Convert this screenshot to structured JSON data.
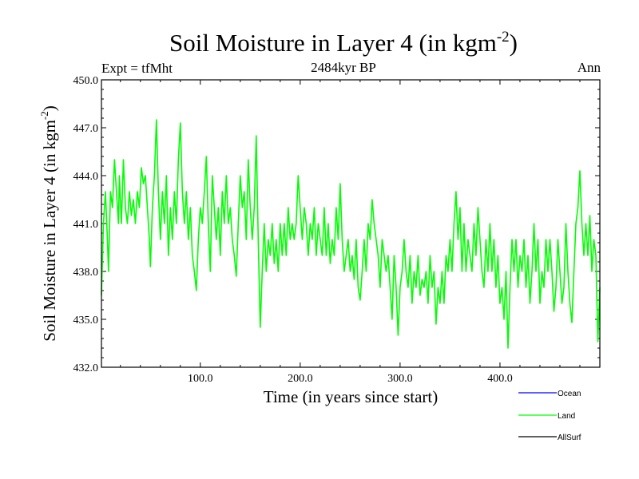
{
  "chart_data": {
    "type": "line",
    "title_main": "Soil Moisture in Layer 4 (in kgm",
    "title_exp": "-2",
    "title_close": ")",
    "subtitle": "2484kyr BP",
    "left_label": "Expt = tfMht",
    "right_label": "Ann",
    "xlabel": "Time (in years since start)",
    "ylabel_main": "Soil Moisture in Layer 4 (in kgm",
    "ylabel_exp": "-2",
    "ylabel_close": ")",
    "xlim": [
      1,
      500
    ],
    "ylim": [
      432.0,
      450.0
    ],
    "x_ticks": [
      100,
      200,
      300,
      400
    ],
    "x_tick_labels": [
      "100.0",
      "200.0",
      "300.0",
      "400.0"
    ],
    "y_ticks": [
      432,
      435,
      438,
      441,
      444,
      447,
      450
    ],
    "y_tick_labels": [
      "432.0",
      "435.0",
      "438.0",
      "441.0",
      "444.0",
      "447.0",
      "450.0"
    ],
    "legend": [
      {
        "name": "Ocean",
        "color": "#0000ff"
      },
      {
        "name": "Land",
        "color": "#00ff00"
      },
      {
        "name": "AllSurf",
        "color": "#000000"
      }
    ],
    "series": [
      {
        "name": "Land",
        "color": "#00ff00",
        "points": [
          [
            1,
            436.5
          ],
          [
            3,
            441
          ],
          [
            5,
            443
          ],
          [
            7,
            440
          ],
          [
            8,
            438
          ],
          [
            10,
            443
          ],
          [
            12,
            442
          ],
          [
            14,
            445
          ],
          [
            16,
            443
          ],
          [
            18,
            441
          ],
          [
            19,
            444
          ],
          [
            21,
            441
          ],
          [
            23,
            445
          ],
          [
            25,
            442
          ],
          [
            27,
            441
          ],
          [
            29,
            443
          ],
          [
            31,
            441.5
          ],
          [
            33,
            442.5
          ],
          [
            35,
            441
          ],
          [
            37,
            443
          ],
          [
            39,
            442
          ],
          [
            41,
            444.5
          ],
          [
            43,
            443.5
          ],
          [
            45,
            444
          ],
          [
            47,
            442
          ],
          [
            49,
            440
          ],
          [
            50,
            438.3
          ],
          [
            52,
            442
          ],
          [
            54,
            444
          ],
          [
            56,
            447.5
          ],
          [
            58,
            443
          ],
          [
            60,
            440
          ],
          [
            62,
            443
          ],
          [
            64,
            441
          ],
          [
            66,
            444
          ],
          [
            68,
            439
          ],
          [
            70,
            442
          ],
          [
            72,
            440
          ],
          [
            74,
            443
          ],
          [
            76,
            441
          ],
          [
            78,
            445
          ],
          [
            80,
            447.3
          ],
          [
            82,
            443
          ],
          [
            84,
            441
          ],
          [
            86,
            443
          ],
          [
            88,
            440
          ],
          [
            90,
            442
          ],
          [
            92,
            439
          ],
          [
            94,
            438
          ],
          [
            96,
            436.8
          ],
          [
            98,
            440
          ],
          [
            100,
            442
          ],
          [
            102,
            441
          ],
          [
            104,
            443
          ],
          [
            106,
            445.2
          ],
          [
            108,
            441
          ],
          [
            110,
            438
          ],
          [
            112,
            444
          ],
          [
            114,
            442
          ],
          [
            116,
            440
          ],
          [
            118,
            442
          ],
          [
            120,
            439
          ],
          [
            122,
            443
          ],
          [
            124,
            441
          ],
          [
            126,
            444
          ],
          [
            128,
            441
          ],
          [
            130,
            442
          ],
          [
            132,
            440
          ],
          [
            134,
            439
          ],
          [
            136,
            437.7
          ],
          [
            138,
            441
          ],
          [
            140,
            444
          ],
          [
            142,
            442
          ],
          [
            144,
            443
          ],
          [
            146,
            440
          ],
          [
            148,
            445
          ],
          [
            150,
            442
          ],
          [
            152,
            440
          ],
          [
            154,
            442
          ],
          [
            156,
            446.5
          ],
          [
            158,
            440
          ],
          [
            160,
            434.5
          ],
          [
            162,
            438
          ],
          [
            164,
            441
          ],
          [
            166,
            438
          ],
          [
            168,
            440
          ],
          [
            170,
            439
          ],
          [
            172,
            441
          ],
          [
            174,
            438.5
          ],
          [
            176,
            440
          ],
          [
            178,
            438
          ],
          [
            180,
            441
          ],
          [
            182,
            439
          ],
          [
            184,
            441
          ],
          [
            186,
            439
          ],
          [
            188,
            442
          ],
          [
            190,
            440
          ],
          [
            192,
            441
          ],
          [
            194,
            440
          ],
          [
            196,
            441
          ],
          [
            198,
            444
          ],
          [
            200,
            442
          ],
          [
            202,
            440
          ],
          [
            204,
            442
          ],
          [
            206,
            441
          ],
          [
            208,
            439
          ],
          [
            210,
            441
          ],
          [
            212,
            440
          ],
          [
            214,
            442
          ],
          [
            216,
            439
          ],
          [
            218,
            441
          ],
          [
            220,
            440
          ],
          [
            222,
            439
          ],
          [
            224,
            442
          ],
          [
            226,
            439
          ],
          [
            228,
            441
          ],
          [
            230,
            438.5
          ],
          [
            232,
            440
          ],
          [
            234,
            439
          ],
          [
            236,
            442
          ],
          [
            238,
            440
          ],
          [
            240,
            443.5
          ],
          [
            242,
            440
          ],
          [
            244,
            438
          ],
          [
            246,
            439
          ],
          [
            248,
            440
          ],
          [
            250,
            438
          ],
          [
            252,
            439
          ],
          [
            254,
            437.5
          ],
          [
            256,
            440
          ],
          [
            258,
            437
          ],
          [
            260,
            436.2
          ],
          [
            262,
            438
          ],
          [
            264,
            440
          ],
          [
            266,
            438
          ],
          [
            268,
            441
          ],
          [
            270,
            440
          ],
          [
            272,
            442.5
          ],
          [
            274,
            441
          ],
          [
            276,
            440
          ],
          [
            278,
            439
          ],
          [
            280,
            437
          ],
          [
            282,
            440
          ],
          [
            284,
            439
          ],
          [
            286,
            438
          ],
          [
            288,
            439
          ],
          [
            290,
            437
          ],
          [
            292,
            435
          ],
          [
            294,
            439
          ],
          [
            296,
            437
          ],
          [
            298,
            434
          ],
          [
            300,
            437
          ],
          [
            302,
            438
          ],
          [
            304,
            440
          ],
          [
            306,
            438
          ],
          [
            308,
            437
          ],
          [
            310,
            439
          ],
          [
            312,
            436
          ],
          [
            314,
            438
          ],
          [
            316,
            437
          ],
          [
            318,
            439
          ],
          [
            320,
            436.5
          ],
          [
            322,
            437.5
          ],
          [
            324,
            437
          ],
          [
            326,
            438
          ],
          [
            328,
            436
          ],
          [
            330,
            439
          ],
          [
            332,
            437
          ],
          [
            334,
            438
          ],
          [
            336,
            434.7
          ],
          [
            338,
            437
          ],
          [
            340,
            436
          ],
          [
            342,
            438
          ],
          [
            344,
            436
          ],
          [
            346,
            439
          ],
          [
            348,
            438
          ],
          [
            350,
            440
          ],
          [
            352,
            438
          ],
          [
            354,
            441
          ],
          [
            356,
            443
          ],
          [
            358,
            440
          ],
          [
            360,
            442
          ],
          [
            362,
            438
          ],
          [
            364,
            441
          ],
          [
            366,
            438
          ],
          [
            368,
            440
          ],
          [
            370,
            439
          ],
          [
            372,
            438
          ],
          [
            374,
            441
          ],
          [
            376,
            439
          ],
          [
            378,
            442
          ],
          [
            380,
            440
          ],
          [
            382,
            438
          ],
          [
            384,
            437
          ],
          [
            386,
            440
          ],
          [
            388,
            438
          ],
          [
            390,
            441
          ],
          [
            392,
            438
          ],
          [
            394,
            440
          ],
          [
            396,
            437
          ],
          [
            398,
            439
          ],
          [
            400,
            436
          ],
          [
            402,
            437
          ],
          [
            404,
            435
          ],
          [
            406,
            438
          ],
          [
            408,
            433.2
          ],
          [
            410,
            437
          ],
          [
            412,
            440
          ],
          [
            414,
            438
          ],
          [
            416,
            440
          ],
          [
            418,
            437
          ],
          [
            420,
            439
          ],
          [
            422,
            438
          ],
          [
            424,
            440
          ],
          [
            426,
            437
          ],
          [
            428,
            439
          ],
          [
            430,
            436
          ],
          [
            432,
            438
          ],
          [
            434,
            441
          ],
          [
            436,
            438
          ],
          [
            438,
            440
          ],
          [
            440,
            436
          ],
          [
            442,
            438
          ],
          [
            444,
            437
          ],
          [
            446,
            440
          ],
          [
            448,
            438
          ],
          [
            450,
            440
          ],
          [
            452,
            438
          ],
          [
            454,
            435.5
          ],
          [
            456,
            437
          ],
          [
            458,
            440
          ],
          [
            460,
            438
          ],
          [
            462,
            436
          ],
          [
            464,
            437
          ],
          [
            466,
            441
          ],
          [
            468,
            438
          ],
          [
            470,
            436
          ],
          [
            472,
            434.8
          ],
          [
            474,
            438
          ],
          [
            476,
            441
          ],
          [
            478,
            442
          ],
          [
            480,
            444.3
          ],
          [
            482,
            441
          ],
          [
            484,
            439
          ],
          [
            486,
            441
          ],
          [
            488,
            439
          ],
          [
            490,
            441.5
          ],
          [
            492,
            438
          ],
          [
            494,
            440
          ],
          [
            496,
            439
          ],
          [
            498,
            433.6
          ],
          [
            500,
            437
          ]
        ]
      }
    ]
  }
}
